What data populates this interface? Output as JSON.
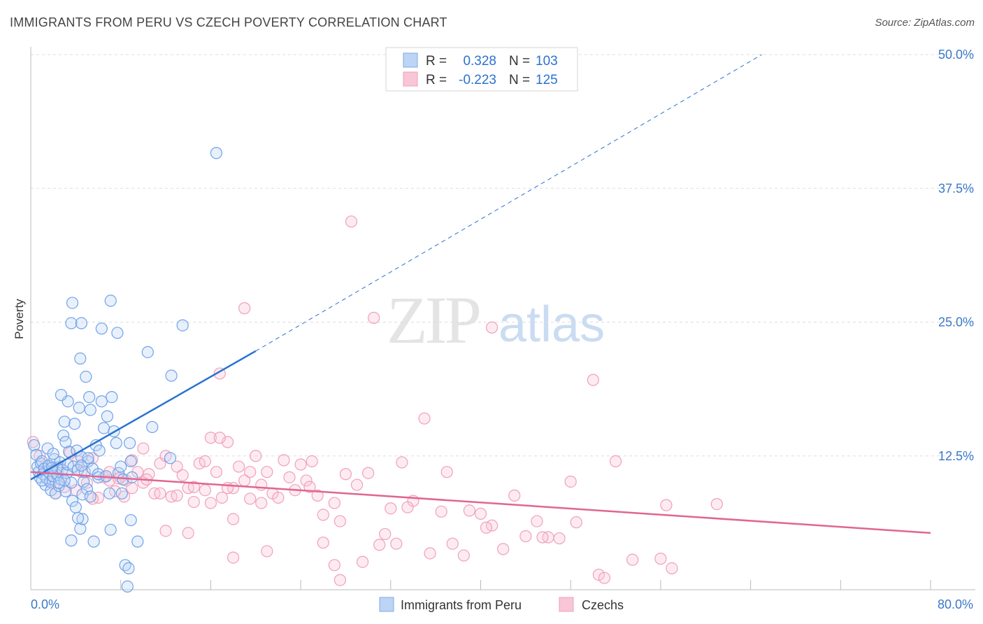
{
  "header": {
    "title": "IMMIGRANTS FROM PERU VS CZECH POVERTY CORRELATION CHART",
    "source": "Source: ZipAtlas.com"
  },
  "colors": {
    "blue": "#6fa3e8",
    "blue_line": "#2a72d0",
    "pink": "#f0a0bb",
    "pink_line": "#e06692",
    "grid": "#dddddd",
    "tick_label": "#3a78c9"
  },
  "chart_data": {
    "type": "scatter",
    "title": "IMMIGRANTS FROM PERU VS CZECH POVERTY CORRELATION CHART",
    "xlabel": "",
    "ylabel": "Poverty",
    "xlim": [
      0,
      80
    ],
    "ylim": [
      0,
      50
    ],
    "y_ticks": [
      12.5,
      25.0,
      37.5,
      50.0
    ],
    "y_tick_labels": [
      "12.5%",
      "25.0%",
      "37.5%",
      "50.0%"
    ],
    "x_tick_labels": [
      "0.0%",
      "80.0%"
    ],
    "watermark": {
      "zip": "ZIP",
      "atlas": "atlas"
    },
    "legend_stats": [
      {
        "r_label": "R =",
        "r_value": "0.328",
        "n_label": "N =",
        "n_value": "103"
      },
      {
        "r_label": "R =",
        "r_value": "-0.223",
        "n_label": "N =",
        "n_value": "125"
      }
    ],
    "series": [
      {
        "name": "Immigrants from Peru",
        "color": "#6fa3e8",
        "trend": {
          "x0": 0,
          "y0": 10.3,
          "x1": 20,
          "y1": 22.3,
          "dash_to_x": 65,
          "dash_to_y": 50
        },
        "points": [
          [
            0.3,
            13.5
          ],
          [
            0.5,
            12.6
          ],
          [
            0.6,
            11.5
          ],
          [
            0.7,
            11.0
          ],
          [
            0.8,
            10.5
          ],
          [
            0.9,
            11.8
          ],
          [
            1.0,
            12.0
          ],
          [
            1.1,
            10.8
          ],
          [
            1.2,
            11.3
          ],
          [
            1.3,
            9.8
          ],
          [
            1.4,
            10.4
          ],
          [
            1.5,
            13.2
          ],
          [
            1.6,
            11.6
          ],
          [
            1.7,
            10.1
          ],
          [
            1.8,
            9.3
          ],
          [
            1.9,
            11.1
          ],
          [
            2.0,
            10.6
          ],
          [
            2.1,
            12.2
          ],
          [
            2.2,
            9.0
          ],
          [
            2.3,
            11.4
          ],
          [
            2.4,
            10.7
          ],
          [
            2.5,
            9.7
          ],
          [
            2.6,
            11.9
          ],
          [
            2.7,
            10.3
          ],
          [
            2.8,
            11.2
          ],
          [
            2.9,
            14.4
          ],
          [
            3.0,
            15.7
          ],
          [
            3.1,
            9.2
          ],
          [
            3.2,
            10.9
          ],
          [
            3.3,
            11.7
          ],
          [
            3.4,
            12.9
          ],
          [
            3.6,
            10.0
          ],
          [
            3.7,
            8.3
          ],
          [
            3.8,
            11.5
          ],
          [
            3.9,
            15.5
          ],
          [
            4.0,
            7.7
          ],
          [
            4.1,
            13.0
          ],
          [
            4.2,
            11.2
          ],
          [
            4.3,
            17.0
          ],
          [
            4.4,
            5.7
          ],
          [
            4.5,
            12.4
          ],
          [
            4.6,
            6.6
          ],
          [
            4.7,
            10.1
          ],
          [
            4.8,
            11.0
          ],
          [
            5.0,
            9.4
          ],
          [
            5.1,
            12.0
          ],
          [
            5.2,
            18.0
          ],
          [
            5.3,
            16.8
          ],
          [
            5.5,
            11.3
          ],
          [
            5.6,
            4.5
          ],
          [
            5.8,
            13.5
          ],
          [
            6.0,
            10.5
          ],
          [
            6.1,
            13.0
          ],
          [
            6.3,
            17.6
          ],
          [
            6.5,
            15.1
          ],
          [
            6.8,
            16.2
          ],
          [
            7.0,
            9.0
          ],
          [
            7.1,
            5.6
          ],
          [
            7.2,
            18.0
          ],
          [
            7.4,
            14.8
          ],
          [
            7.6,
            13.7
          ],
          [
            7.8,
            10.9
          ],
          [
            8.0,
            11.5
          ],
          [
            8.2,
            10.3
          ],
          [
            8.4,
            2.3
          ],
          [
            8.6,
            0.3
          ],
          [
            8.8,
            13.7
          ],
          [
            9.0,
            10.5
          ],
          [
            8.7,
            2.0
          ],
          [
            8.9,
            6.5
          ],
          [
            9.5,
            4.5
          ],
          [
            10.4,
            22.2
          ],
          [
            10.8,
            15.2
          ],
          [
            12.4,
            12.3
          ],
          [
            12.5,
            20.0
          ],
          [
            13.5,
            24.7
          ],
          [
            16.5,
            40.8
          ],
          [
            3.7,
            26.8
          ],
          [
            3.6,
            24.9
          ],
          [
            4.5,
            24.9
          ],
          [
            7.1,
            27.0
          ],
          [
            6.3,
            24.4
          ],
          [
            7.7,
            24.0
          ],
          [
            4.4,
            21.6
          ],
          [
            4.9,
            19.9
          ],
          [
            3.3,
            17.6
          ],
          [
            2.7,
            18.2
          ],
          [
            5.1,
            12.3
          ],
          [
            3.0,
            10.2
          ],
          [
            2.5,
            10.0
          ],
          [
            3.1,
            13.8
          ],
          [
            2.0,
            12.7
          ],
          [
            1.9,
            11.4
          ],
          [
            4.6,
            8.9
          ],
          [
            5.3,
            8.7
          ],
          [
            6.0,
            10.8
          ],
          [
            8.9,
            12.0
          ],
          [
            8.1,
            9.0
          ],
          [
            4.2,
            6.7
          ],
          [
            4.5,
            11.6
          ],
          [
            6.7,
            10.6
          ],
          [
            1.0,
            10.2
          ],
          [
            3.6,
            4.6
          ]
        ]
      },
      {
        "name": "Czechs",
        "color": "#f0a0bb",
        "trend": {
          "x0": 0,
          "y0": 11.0,
          "x1": 80,
          "y1": 5.3
        },
        "points": [
          [
            0.2,
            13.8
          ],
          [
            0.8,
            12.5
          ],
          [
            1.5,
            11.6
          ],
          [
            1.8,
            10.0
          ],
          [
            2.2,
            9.0
          ],
          [
            2.6,
            11.5
          ],
          [
            3.0,
            9.6
          ],
          [
            3.5,
            12.8
          ],
          [
            4.0,
            9.3
          ],
          [
            4.5,
            11.0
          ],
          [
            5.0,
            10.0
          ],
          [
            5.5,
            12.3
          ],
          [
            6.0,
            8.6
          ],
          [
            6.5,
            10.5
          ],
          [
            7.0,
            11.0
          ],
          [
            7.5,
            9.2
          ],
          [
            8.0,
            10.5
          ],
          [
            8.5,
            10.2
          ],
          [
            9.0,
            12.1
          ],
          [
            9.5,
            11.0
          ],
          [
            10.0,
            13.2
          ],
          [
            10.5,
            10.8
          ],
          [
            11.0,
            9.0
          ],
          [
            11.5,
            11.8
          ],
          [
            12.0,
            12.5
          ],
          [
            12.5,
            8.7
          ],
          [
            13.0,
            11.5
          ],
          [
            13.5,
            10.7
          ],
          [
            14.0,
            9.5
          ],
          [
            14.5,
            8.2
          ],
          [
            15.0,
            11.8
          ],
          [
            15.5,
            9.3
          ],
          [
            16.0,
            14.2
          ],
          [
            16.5,
            11.0
          ],
          [
            17.0,
            8.6
          ],
          [
            17.5,
            13.8
          ],
          [
            18.0,
            9.5
          ],
          [
            18.5,
            11.5
          ],
          [
            19.0,
            10.2
          ],
          [
            19.5,
            8.5
          ],
          [
            20.0,
            12.5
          ],
          [
            20.5,
            9.8
          ],
          [
            21.0,
            11.0
          ],
          [
            21.5,
            9.0
          ],
          [
            22.0,
            8.6
          ],
          [
            23.0,
            10.5
          ],
          [
            23.5,
            9.3
          ],
          [
            24.0,
            11.7
          ],
          [
            24.5,
            10.2
          ],
          [
            25.0,
            12.0
          ],
          [
            26.0,
            7.0
          ],
          [
            27.0,
            8.1
          ],
          [
            28.0,
            10.8
          ],
          [
            29.0,
            9.8
          ],
          [
            30.0,
            10.9
          ],
          [
            31.0,
            4.2
          ],
          [
            32.0,
            7.6
          ],
          [
            33.0,
            11.9
          ],
          [
            34.0,
            8.3
          ],
          [
            35.0,
            16.0
          ],
          [
            37.0,
            11.0
          ],
          [
            39.0,
            7.4
          ],
          [
            40.0,
            7.1
          ],
          [
            41.0,
            6.0
          ],
          [
            43.0,
            8.8
          ],
          [
            45.0,
            6.4
          ],
          [
            46.0,
            4.9
          ],
          [
            47.0,
            4.8
          ],
          [
            48.0,
            10.1
          ],
          [
            50.0,
            19.6
          ],
          [
            52.0,
            12.0
          ],
          [
            56.0,
            2.9
          ],
          [
            57.0,
            2.0
          ],
          [
            56.5,
            7.9
          ],
          [
            61.0,
            8.0
          ],
          [
            28.5,
            34.4
          ],
          [
            19.0,
            26.3
          ],
          [
            30.5,
            25.4
          ],
          [
            41.0,
            24.5
          ],
          [
            16.8,
            20.2
          ],
          [
            10.0,
            10.0
          ],
          [
            9.0,
            9.5
          ],
          [
            11.5,
            9.0
          ],
          [
            13.0,
            8.8
          ],
          [
            14.5,
            9.6
          ],
          [
            16.0,
            8.1
          ],
          [
            17.5,
            9.5
          ],
          [
            18.0,
            6.6
          ],
          [
            19.5,
            11.0
          ],
          [
            20.5,
            8.1
          ],
          [
            22.5,
            12.1
          ],
          [
            24.8,
            9.6
          ],
          [
            25.5,
            8.8
          ],
          [
            27.5,
            6.4
          ],
          [
            29.5,
            2.6
          ],
          [
            31.5,
            5.2
          ],
          [
            32.5,
            4.3
          ],
          [
            33.5,
            7.7
          ],
          [
            35.5,
            3.4
          ],
          [
            36.5,
            7.3
          ],
          [
            37.5,
            4.3
          ],
          [
            38.5,
            3.2
          ],
          [
            40.5,
            5.8
          ],
          [
            42.0,
            3.8
          ],
          [
            44.0,
            5.0
          ],
          [
            45.5,
            4.9
          ],
          [
            48.5,
            6.3
          ],
          [
            50.5,
            1.4
          ],
          [
            51.0,
            1.1
          ],
          [
            53.5,
            2.8
          ],
          [
            7.0,
            10.2
          ],
          [
            12.0,
            5.5
          ],
          [
            14.0,
            5.3
          ],
          [
            18.0,
            3.0
          ],
          [
            21.0,
            3.6
          ],
          [
            26.0,
            4.4
          ],
          [
            27.0,
            2.3
          ],
          [
            27.5,
            0.9
          ],
          [
            7.8,
            10.4
          ],
          [
            10.3,
            10.3
          ],
          [
            5.5,
            8.5
          ],
          [
            8.3,
            8.7
          ],
          [
            4.2,
            12.0
          ],
          [
            15.5,
            12.0
          ],
          [
            16.8,
            14.2
          ]
        ]
      }
    ]
  }
}
